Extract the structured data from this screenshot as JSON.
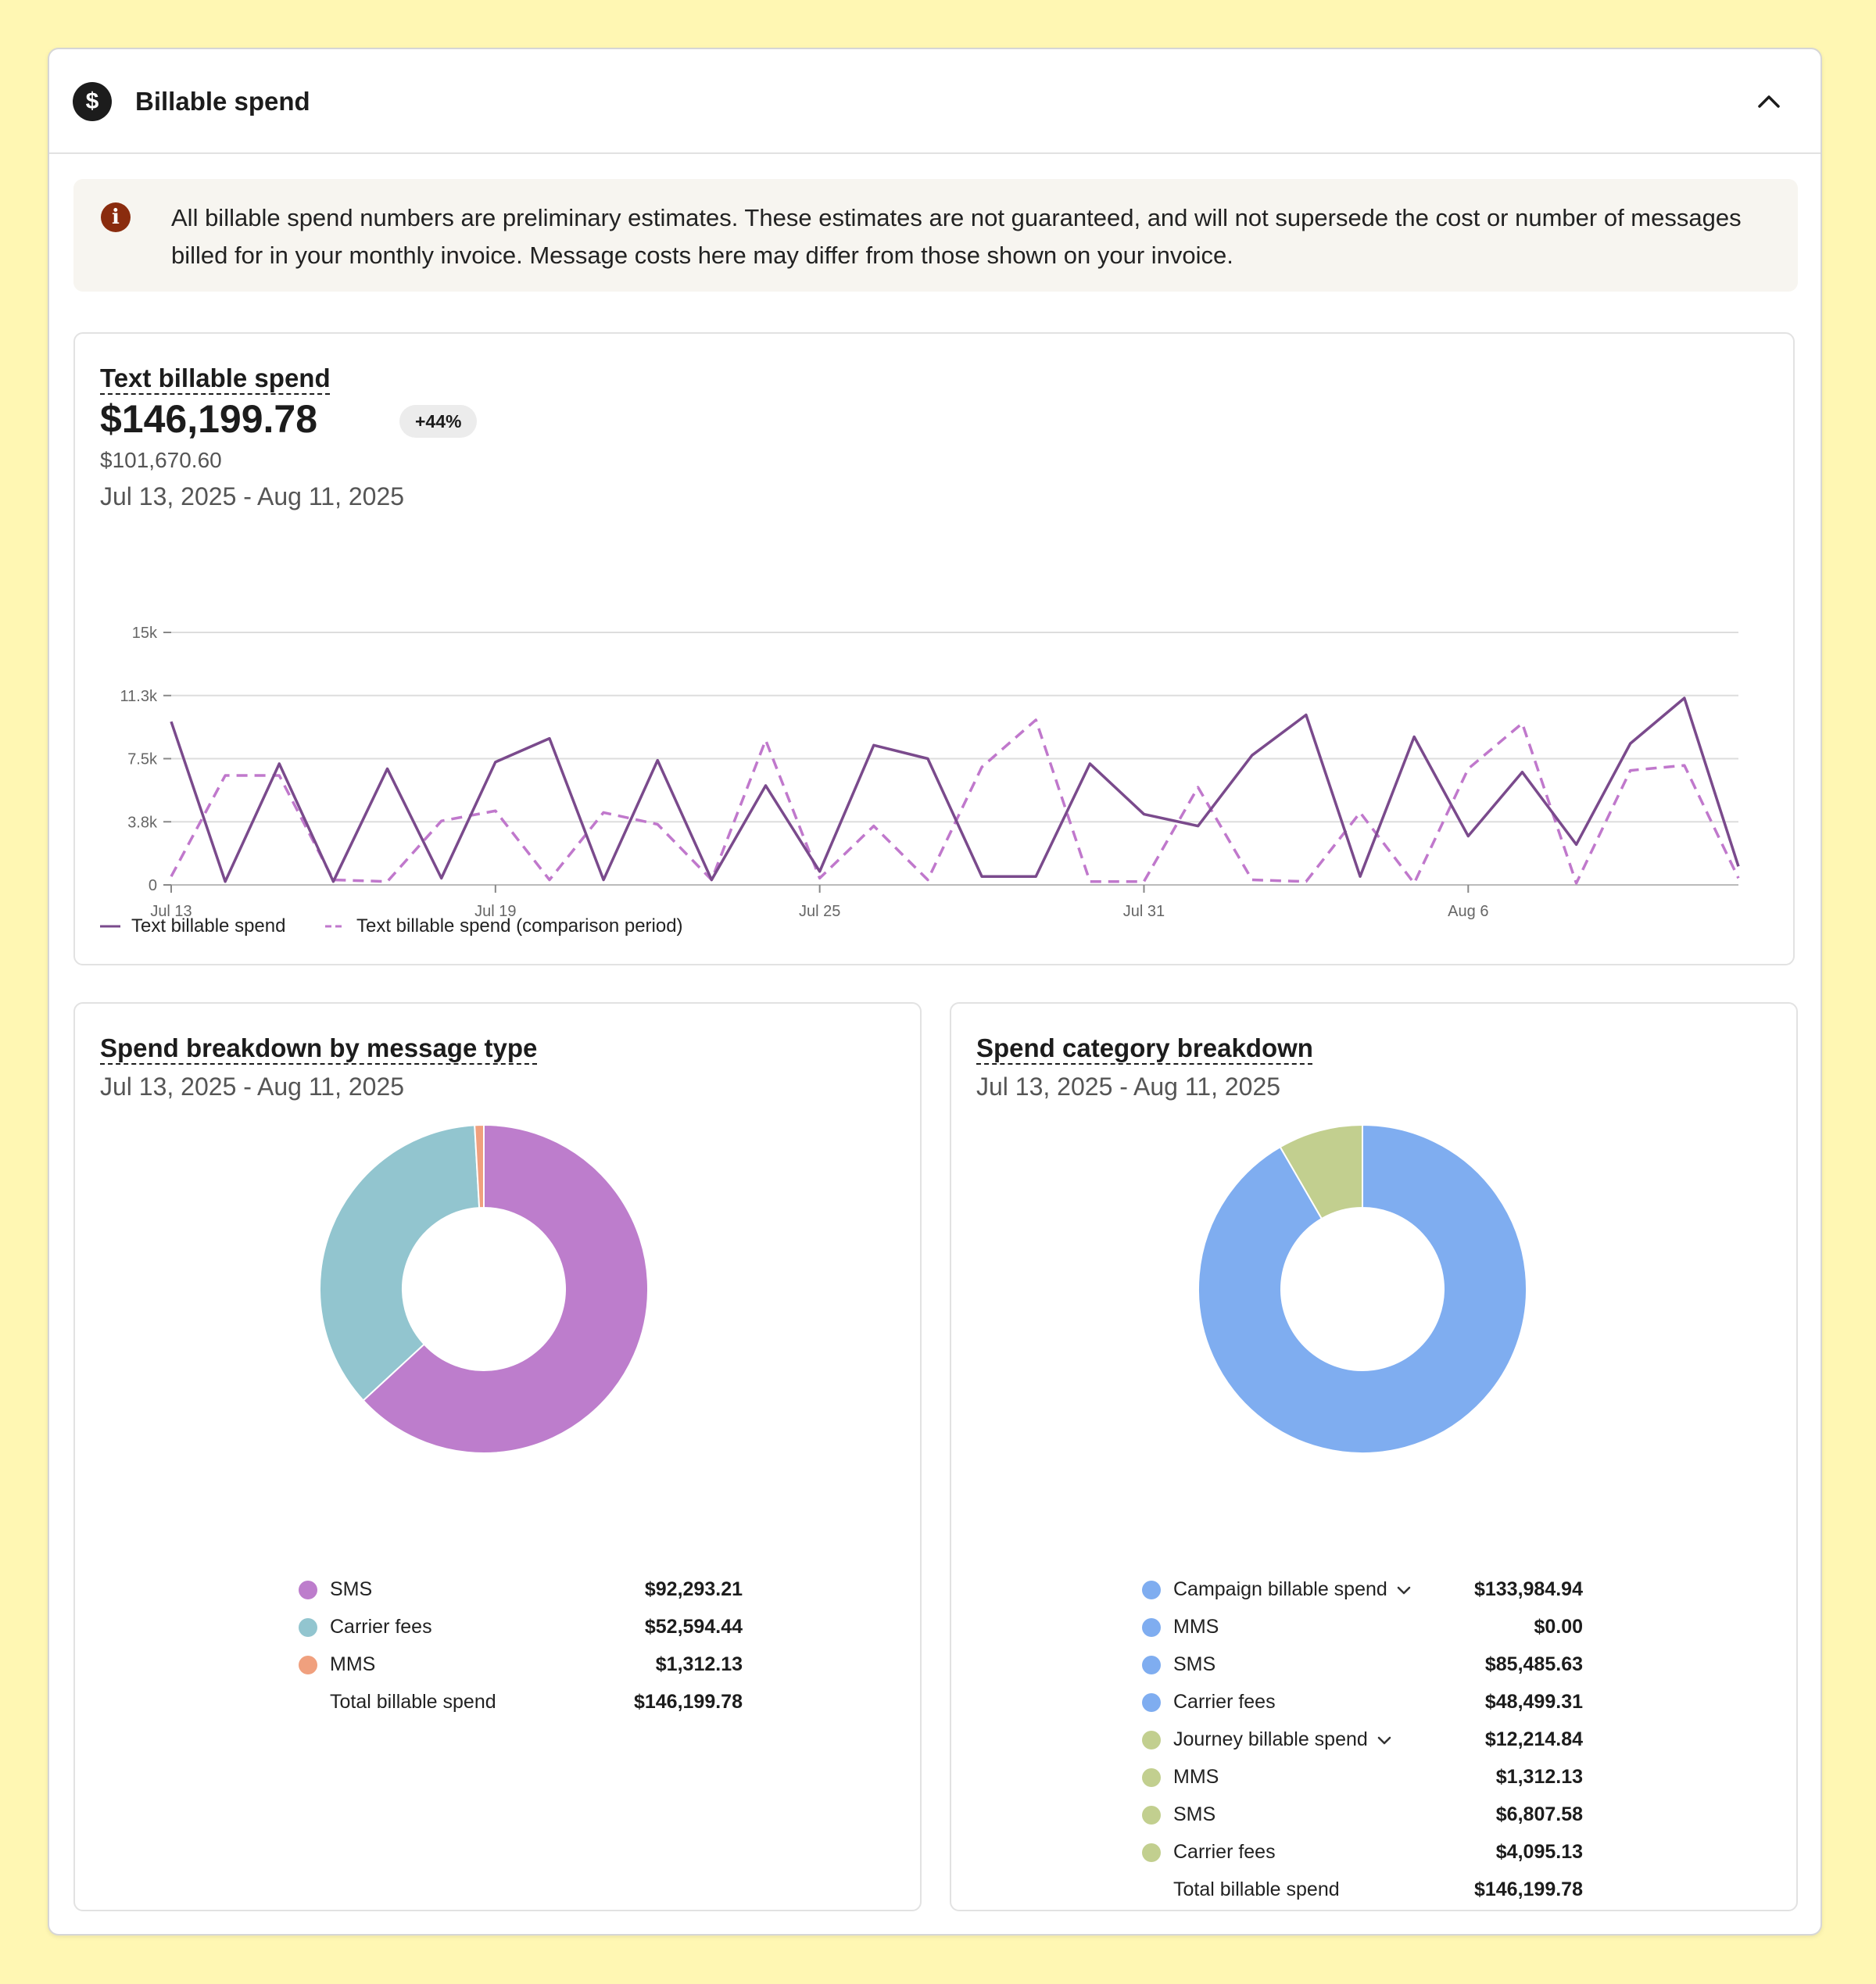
{
  "panel": {
    "title": "Billable spend",
    "icon": "dollar-icon",
    "collapse_icon": "chevron-up-icon"
  },
  "notice": {
    "icon": "info-icon",
    "text": "All billable spend numbers are preliminary estimates. These estimates are not guaranteed, and will not supersede the cost or number of messages billed for in your monthly invoice. Message costs here may differ from those shown on your invoice."
  },
  "text_spend": {
    "title": "Text billable spend",
    "value": "$146,199.78",
    "change_badge": "+44%",
    "comparison_value": "$101,670.60",
    "date_range": "Jul 13, 2025 - Aug 11, 2025",
    "legend": [
      "Text billable spend",
      "Text billable spend (comparison period)"
    ]
  },
  "message_type": {
    "title": "Spend breakdown by message type",
    "date_range": "Jul 13, 2025 - Aug 11, 2025",
    "rows": [
      {
        "label": "SMS",
        "value": "$92,293.21",
        "color": "#bd7dcc"
      },
      {
        "label": "Carrier fees",
        "value": "$52,594.44",
        "color": "#92c5cf"
      },
      {
        "label": "MMS",
        "value": "$1,312.13",
        "color": "#f0a07e"
      }
    ],
    "total_label": "Total billable spend",
    "total_value": "$146,199.78"
  },
  "category": {
    "title": "Spend category breakdown",
    "date_range": "Jul 13, 2025 - Aug 11, 2025",
    "rows": [
      {
        "label": "Campaign billable spend",
        "value": "$133,984.94",
        "color": "#7fadf0",
        "expandable": true
      },
      {
        "label": "MMS",
        "value": "$0.00",
        "color": "#7fadf0"
      },
      {
        "label": "SMS",
        "value": "$85,485.63",
        "color": "#7fadf0"
      },
      {
        "label": "Carrier fees",
        "value": "$48,499.31",
        "color": "#7fadf0"
      },
      {
        "label": "Journey billable spend",
        "value": "$12,214.84",
        "color": "#c2cf8f",
        "expandable": true
      },
      {
        "label": "MMS",
        "value": "$1,312.13",
        "color": "#c2cf8f"
      },
      {
        "label": "SMS",
        "value": "$6,807.58",
        "color": "#c2cf8f"
      },
      {
        "label": "Carrier fees",
        "value": "$4,095.13",
        "color": "#c2cf8f"
      }
    ],
    "total_label": "Total billable spend",
    "total_value": "$146,199.78"
  },
  "chart_data": [
    {
      "type": "line",
      "x": [
        "Jul 13",
        "Jul 14",
        "Jul 15",
        "Jul 16",
        "Jul 17",
        "Jul 18",
        "Jul 19",
        "Jul 20",
        "Jul 21",
        "Jul 22",
        "Jul 23",
        "Jul 24",
        "Jul 25",
        "Jul 26",
        "Jul 27",
        "Jul 28",
        "Jul 29",
        "Jul 30",
        "Jul 31",
        "Aug 1",
        "Aug 2",
        "Aug 3",
        "Aug 4",
        "Aug 5",
        "Aug 6",
        "Aug 7",
        "Aug 8",
        "Aug 9",
        "Aug 10",
        "Aug 11"
      ],
      "x_ticks": [
        "Jul 13",
        "Jul 19",
        "Jul 25",
        "Jul 31",
        "Aug 6"
      ],
      "y_ticks": [
        "0",
        "3.8k",
        "7.5k",
        "11.3k",
        "15k"
      ],
      "ylim": [
        0,
        15000
      ],
      "grid": true,
      "legend_position": "bottom-left",
      "series": [
        {
          "name": "Text billable spend",
          "color": "#7a4a8c",
          "dashed": false,
          "values": [
            9700,
            200,
            7200,
            200,
            6900,
            400,
            7300,
            8700,
            300,
            7400,
            300,
            5900,
            800,
            8300,
            7500,
            500,
            500,
            7200,
            4200,
            3500,
            7700,
            10100,
            500,
            8800,
            2900,
            6700,
            2400,
            8400,
            11100,
            1100
          ]
        },
        {
          "name": "Text billable spend (comparison period)",
          "color": "#c078cc",
          "dashed": true,
          "values": [
            500,
            6500,
            6500,
            300,
            200,
            3800,
            4400,
            300,
            4300,
            3600,
            300,
            8600,
            400,
            3500,
            300,
            7000,
            9800,
            200,
            200,
            5800,
            300,
            200,
            4300,
            100,
            6900,
            9600,
            100,
            6800,
            7100,
            400
          ]
        }
      ]
    },
    {
      "type": "pie",
      "title": "Spend breakdown by message type",
      "categories": [
        "SMS",
        "Carrier fees",
        "MMS"
      ],
      "values": [
        92293.21,
        52594.44,
        1312.13
      ],
      "colors": [
        "#bd7dcc",
        "#92c5cf",
        "#f0a07e"
      ]
    },
    {
      "type": "pie",
      "title": "Spend category breakdown",
      "categories": [
        "Campaign billable spend",
        "Journey billable spend"
      ],
      "values": [
        133984.94,
        12214.84
      ],
      "colors": [
        "#7fadf0",
        "#c2cf8f"
      ]
    }
  ]
}
